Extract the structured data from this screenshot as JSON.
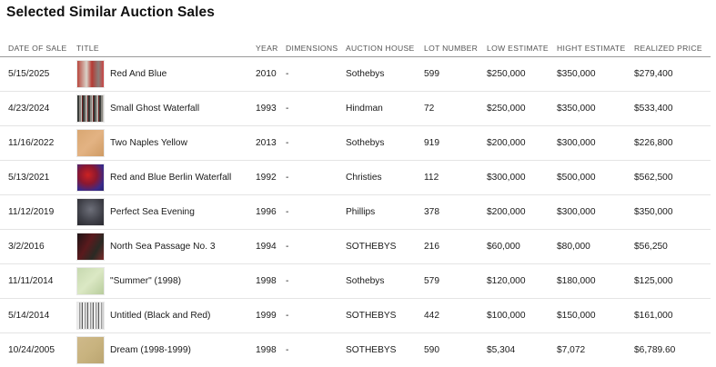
{
  "heading": "Selected Similar Auction Sales",
  "columns": {
    "date": "DATE OF SALE",
    "title": "TITLE",
    "year": "YEAR",
    "dimensions": "DIMENSIONS",
    "house": "AUCTION HOUSE",
    "lot": "LOT NUMBER",
    "low": "LOW ESTIMATE",
    "high": "HIGHT ESTIMATE",
    "realized": "REALIZED PRICE"
  },
  "rows": [
    {
      "date": "5/15/2025",
      "thumb": "painting-thumbnail",
      "title": "Red And Blue",
      "year": "2010",
      "dimensions": "-",
      "house": "Sothebys",
      "lot": "599",
      "low": "$250,000",
      "high": "$350,000",
      "realized": "$279,400"
    },
    {
      "date": "4/23/2024",
      "thumb": "painting-thumbnail",
      "title": "Small Ghost Waterfall",
      "year": "1993",
      "dimensions": "-",
      "house": "Hindman",
      "lot": "72",
      "low": "$250,000",
      "high": "$350,000",
      "realized": "$533,400"
    },
    {
      "date": "11/16/2022",
      "thumb": "painting-thumbnail",
      "title": "Two Naples Yellow",
      "year": "2013",
      "dimensions": "-",
      "house": "Sothebys",
      "lot": "919",
      "low": "$200,000",
      "high": "$300,000",
      "realized": "$226,800"
    },
    {
      "date": "5/13/2021",
      "thumb": "painting-thumbnail",
      "title": "Red and Blue Berlin Waterfall",
      "year": "1992",
      "dimensions": "-",
      "house": "Christies",
      "lot": "112",
      "low": "$300,000",
      "high": "$500,000",
      "realized": "$562,500"
    },
    {
      "date": "11/12/2019",
      "thumb": "painting-thumbnail",
      "title": "Perfect Sea Evening",
      "year": "1996",
      "dimensions": "-",
      "house": "Phillips",
      "lot": "378",
      "low": "$200,000",
      "high": "$300,000",
      "realized": "$350,000"
    },
    {
      "date": "3/2/2016",
      "thumb": "painting-thumbnail",
      "title": "North Sea Passage No. 3",
      "year": "1994",
      "dimensions": "-",
      "house": "SOTHEBYS",
      "lot": "216",
      "low": "$60,000",
      "high": "$80,000",
      "realized": "$56,250"
    },
    {
      "date": "11/11/2014",
      "thumb": "painting-thumbnail",
      "title": "\"Summer\" (1998)",
      "year": "1998",
      "dimensions": "-",
      "house": "Sothebys",
      "lot": "579",
      "low": "$120,000",
      "high": "$180,000",
      "realized": "$125,000"
    },
    {
      "date": "5/14/2014",
      "thumb": "painting-thumbnail",
      "title": "Untitled (Black and Red)",
      "year": "1999",
      "dimensions": "-",
      "house": "SOTHEBYS",
      "lot": "442",
      "low": "$100,000",
      "high": "$150,000",
      "realized": "$161,000"
    },
    {
      "date": "10/24/2005",
      "thumb": "painting-thumbnail",
      "title": "Dream (1998-1999)",
      "year": "1998",
      "dimensions": "-",
      "house": "SOTHEBYS",
      "lot": "590",
      "low": "$5,304",
      "high": "$7,072",
      "realized": "$6,789.60"
    }
  ]
}
